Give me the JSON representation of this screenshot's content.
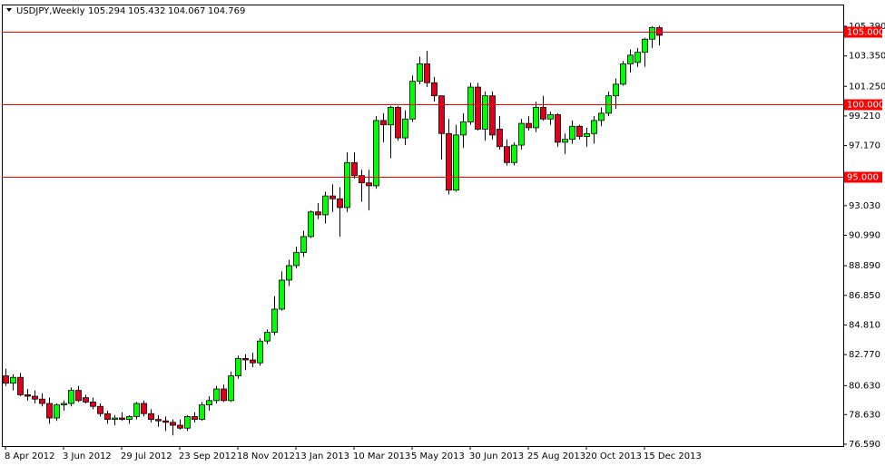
{
  "chart_data": {
    "type": "candlestick",
    "title": "USDJPY,Weekly",
    "categories": [
      "8 Apr 2012",
      null,
      null,
      null,
      null,
      null,
      null,
      null,
      "3 Jun 2012",
      null,
      null,
      null,
      null,
      null,
      null,
      null,
      "29 Jul 2012",
      null,
      null,
      null,
      null,
      null,
      null,
      null,
      "23 Sep 2012",
      null,
      null,
      null,
      null,
      null,
      null,
      null,
      "18 Nov 2012",
      null,
      null,
      null,
      null,
      null,
      null,
      null,
      "13 Jan 2013",
      null,
      null,
      null,
      null,
      null,
      null,
      null,
      "10 Mar 2013",
      null,
      null,
      null,
      null,
      null,
      null,
      null,
      "5 May 2013",
      null,
      null,
      null,
      null,
      null,
      null,
      null,
      "30 Jun 2013",
      null,
      null,
      null,
      null,
      null,
      null,
      null,
      "25 Aug 2013",
      null,
      null,
      null,
      null,
      null,
      null,
      null,
      "20 Oct 2013",
      null,
      null,
      null,
      null,
      null,
      null,
      null,
      "15 Dec 2013",
      null,
      null
    ],
    "open": [
      81.3,
      80.8,
      81.2,
      80.0,
      79.9,
      79.7,
      79.4,
      78.4,
      79.3,
      79.4,
      80.3,
      79.8,
      79.5,
      79.2,
      78.7,
      78.3,
      78.4,
      78.3,
      78.5,
      79.4,
      78.7,
      78.3,
      78.2,
      78.1,
      77.9,
      77.7,
      78.5,
      78.3,
      79.3,
      79.6,
      80.4,
      79.6,
      81.3,
      82.5,
      82.4,
      82.2,
      83.7,
      84.3,
      85.9,
      87.9,
      88.9,
      89.8,
      90.9,
      92.6,
      92.4,
      93.7,
      93.5,
      92.9,
      96.0,
      95.1,
      94.6,
      94.4,
      98.9,
      98.6,
      99.8,
      97.7,
      99.0,
      101.6,
      102.8,
      101.5,
      100.6,
      98.0,
      94.1,
      97.9,
      98.8,
      101.2,
      98.3,
      100.6,
      98.3,
      97.1,
      96.0,
      97.2,
      98.7,
      98.4,
      99.8,
      99.0,
      99.3,
      97.4,
      97.6,
      98.5,
      97.8,
      98.0,
      98.9,
      99.4,
      100.6,
      101.4,
      102.8,
      102.9,
      103.6,
      104.5,
      105.294
    ],
    "high": [
      81.8,
      81.4,
      81.5,
      80.4,
      80.3,
      80.1,
      79.8,
      79.4,
      79.6,
      80.5,
      80.6,
      80.0,
      79.8,
      79.4,
      78.9,
      78.6,
      78.8,
      78.6,
      79.5,
      79.6,
      79.0,
      78.6,
      78.5,
      78.3,
      78.3,
      78.6,
      78.8,
      79.5,
      79.9,
      80.6,
      80.7,
      81.6,
      82.7,
      82.8,
      82.9,
      83.9,
      84.5,
      86.8,
      88.5,
      89.3,
      90.2,
      91.3,
      92.7,
      93.2,
      94.0,
      94.5,
      94.3,
      96.7,
      96.7,
      95.5,
      95.5,
      99.2,
      99.4,
      99.9,
      99.9,
      99.6,
      102.0,
      103.3,
      103.7,
      101.9,
      100.6,
      99.0,
      98.6,
      99.4,
      101.5,
      101.5,
      100.9,
      100.9,
      99.2,
      97.6,
      97.4,
      99.0,
      99.2,
      100.2,
      100.6,
      99.5,
      99.4,
      98.0,
      98.9,
      98.6,
      98.4,
      99.2,
      99.8,
      100.9,
      101.8,
      103.0,
      103.8,
      103.9,
      104.6,
      105.4,
      105.432
    ],
    "low": [
      80.6,
      80.3,
      79.9,
      79.6,
      79.4,
      79.2,
      78.0,
      78.2,
      78.9,
      79.2,
      79.5,
      79.4,
      79.0,
      78.5,
      78.0,
      77.9,
      78.2,
      78.0,
      78.3,
      78.5,
      78.1,
      77.8,
      77.5,
      77.2,
      77.6,
      77.5,
      78.1,
      78.2,
      78.9,
      79.4,
      79.5,
      79.5,
      81.1,
      81.7,
      81.9,
      82.0,
      83.5,
      84.1,
      85.8,
      87.5,
      88.7,
      89.5,
      90.8,
      92.1,
      91.8,
      92.6,
      90.9,
      92.6,
      94.9,
      93.3,
      92.7,
      94.2,
      97.4,
      96.3,
      97.5,
      97.2,
      98.8,
      101.4,
      101.2,
      100.2,
      96.2,
      93.8,
      94.0,
      97.0,
      98.6,
      98.2,
      97.5,
      97.6,
      96.9,
      95.8,
      95.8,
      96.9,
      98.2,
      98.1,
      98.9,
      98.6,
      97.1,
      96.6,
      97.3,
      97.6,
      97.1,
      97.3,
      98.5,
      99.2,
      99.7,
      101.3,
      102.2,
      102.6,
      102.6,
      103.9,
      104.067
    ],
    "close": [
      80.8,
      81.2,
      80.0,
      79.9,
      79.7,
      79.4,
      78.4,
      79.3,
      79.4,
      80.3,
      79.6,
      79.5,
      79.2,
      78.7,
      78.3,
      78.4,
      78.3,
      78.5,
      79.4,
      78.7,
      78.3,
      78.2,
      78.1,
      77.9,
      77.7,
      78.5,
      78.3,
      79.3,
      79.6,
      80.4,
      79.6,
      81.3,
      82.5,
      82.4,
      82.2,
      83.7,
      84.3,
      85.9,
      87.9,
      88.9,
      89.8,
      90.9,
      92.6,
      92.4,
      93.7,
      93.5,
      92.9,
      96.0,
      95.1,
      94.6,
      94.4,
      98.9,
      98.6,
      99.8,
      97.7,
      99.0,
      101.6,
      102.8,
      101.5,
      100.6,
      98.0,
      94.1,
      97.9,
      98.8,
      101.2,
      98.3,
      100.6,
      97.9,
      97.1,
      96.0,
      97.2,
      98.7,
      98.4,
      99.8,
      99.0,
      99.3,
      97.4,
      97.6,
      98.5,
      97.8,
      98.0,
      98.9,
      99.4,
      100.6,
      101.4,
      102.8,
      103.4,
      103.6,
      104.5,
      105.3,
      104.769
    ],
    "up_color": "#00ff00",
    "down_color": "#e0001b",
    "ylim": [
      76.465,
      106.889
    ],
    "yticks": [
      {
        "value": 105.39,
        "label": "105.390"
      },
      {
        "value": 103.35,
        "label": "103.350"
      },
      {
        "value": 101.25,
        "label": "101.250"
      },
      {
        "value": 99.21,
        "label": "99.210"
      },
      {
        "value": 97.17,
        "label": "97.170"
      },
      {
        "value": 93.03,
        "label": "93.030"
      },
      {
        "value": 90.99,
        "label": "90.990"
      },
      {
        "value": 88.89,
        "label": "88.890"
      },
      {
        "value": 86.85,
        "label": "86.850"
      },
      {
        "value": 84.81,
        "label": "84.810"
      },
      {
        "value": 82.77,
        "label": "82.770"
      },
      {
        "value": 80.63,
        "label": "80.630"
      },
      {
        "value": 78.63,
        "label": "78.630"
      },
      {
        "value": 76.59,
        "label": "76.590"
      }
    ],
    "hlines": [
      {
        "value": 105,
        "label": "105.000"
      },
      {
        "value": 100,
        "label": "100.000"
      },
      {
        "value": 95,
        "label": "95.000"
      }
    ],
    "hline_color": "#ff0000",
    "grid": false
  }
}
